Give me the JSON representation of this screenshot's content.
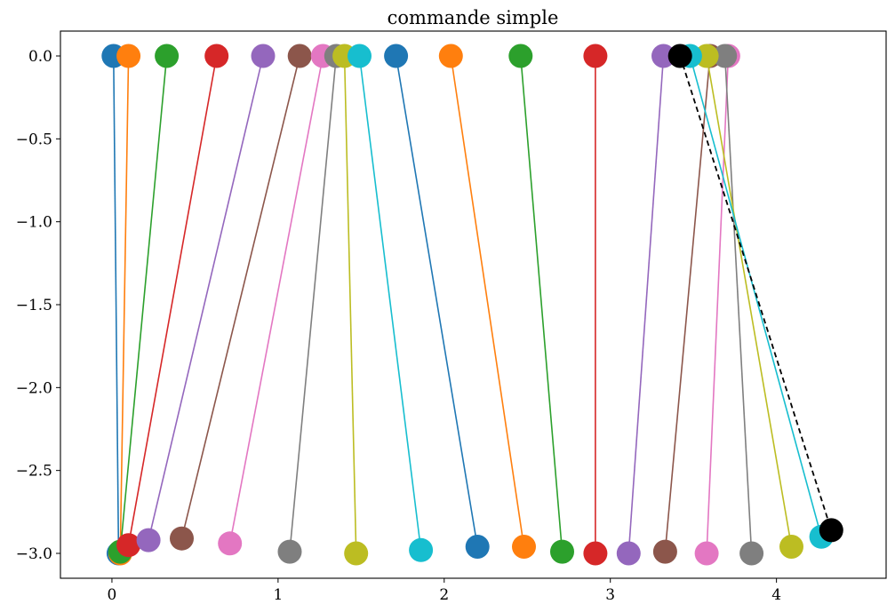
{
  "chart_data": {
    "type": "line",
    "title": "commande simple",
    "xlabel": "",
    "ylabel": "",
    "xlim": [
      -0.31,
      4.66
    ],
    "ylim": [
      -3.15,
      0.15
    ],
    "x_ticks": [
      0,
      1,
      2,
      3,
      4
    ],
    "x_tick_labels": [
      "0",
      "1",
      "2",
      "3",
      "4"
    ],
    "y_ticks": [
      0.0,
      -0.5,
      -1.0,
      -1.5,
      -2.0,
      -2.5,
      -3.0
    ],
    "y_tick_labels": [
      "0.0",
      "−0.5",
      "−1.0",
      "−1.5",
      "−2.0",
      "−2.5",
      "−3.0"
    ],
    "grid": false,
    "colors": [
      "#1f77b4",
      "#ff7f0e",
      "#2ca02c",
      "#d62728",
      "#9467bd",
      "#8c564b",
      "#e377c2",
      "#7f7f7f",
      "#bcbd22",
      "#17becf"
    ],
    "series": [
      {
        "color": "#1f77b4",
        "x": [
          0.01,
          0.04
        ],
        "y": [
          0.0,
          -3.0
        ]
      },
      {
        "color": "#ff7f0e",
        "x": [
          0.1,
          0.05
        ],
        "y": [
          0.0,
          -3.0
        ]
      },
      {
        "color": "#2ca02c",
        "x": [
          0.33,
          0.05
        ],
        "y": [
          0.0,
          -2.99
        ]
      },
      {
        "color": "#d62728",
        "x": [
          0.63,
          0.1
        ],
        "y": [
          0.0,
          -2.95
        ]
      },
      {
        "color": "#9467bd",
        "x": [
          0.91,
          0.22
        ],
        "y": [
          0.0,
          -2.92
        ]
      },
      {
        "color": "#8c564b",
        "x": [
          1.13,
          0.42
        ],
        "y": [
          0.0,
          -2.91
        ]
      },
      {
        "color": "#e377c2",
        "x": [
          1.27,
          0.71
        ],
        "y": [
          0.0,
          -2.94
        ]
      },
      {
        "color": "#7f7f7f",
        "x": [
          1.35,
          1.07
        ],
        "y": [
          0.0,
          -2.99
        ]
      },
      {
        "color": "#bcbd22",
        "x": [
          1.4,
          1.47
        ],
        "y": [
          0.0,
          -3.0
        ]
      },
      {
        "color": "#17becf",
        "x": [
          1.49,
          1.86
        ],
        "y": [
          0.0,
          -2.98
        ]
      },
      {
        "color": "#1f77b4",
        "x": [
          1.71,
          2.2
        ],
        "y": [
          0.0,
          -2.96
        ]
      },
      {
        "color": "#ff7f0e",
        "x": [
          2.04,
          2.48
        ],
        "y": [
          0.0,
          -2.96
        ]
      },
      {
        "color": "#2ca02c",
        "x": [
          2.46,
          2.71
        ],
        "y": [
          0.0,
          -2.99
        ]
      },
      {
        "color": "#d62728",
        "x": [
          2.91,
          2.91
        ],
        "y": [
          0.0,
          -3.0
        ]
      },
      {
        "color": "#9467bd",
        "x": [
          3.32,
          3.11
        ],
        "y": [
          0.0,
          -3.0
        ]
      },
      {
        "color": "#8c564b",
        "x": [
          3.6,
          3.33
        ],
        "y": [
          0.0,
          -2.99
        ]
      },
      {
        "color": "#e377c2",
        "x": [
          3.71,
          3.58
        ],
        "y": [
          0.0,
          -3.0
        ]
      },
      {
        "color": "#7f7f7f",
        "x": [
          3.69,
          3.85
        ],
        "y": [
          0.0,
          -3.0
        ]
      },
      {
        "color": "#bcbd22",
        "x": [
          3.58,
          4.09
        ],
        "y": [
          0.0,
          -2.96
        ]
      },
      {
        "color": "#17becf",
        "x": [
          3.48,
          4.27
        ],
        "y": [
          0.0,
          -2.9
        ]
      },
      {
        "color": "#000000",
        "x": [
          3.42,
          4.33
        ],
        "y": [
          0.0,
          -2.86
        ],
        "dashed": true
      }
    ]
  }
}
